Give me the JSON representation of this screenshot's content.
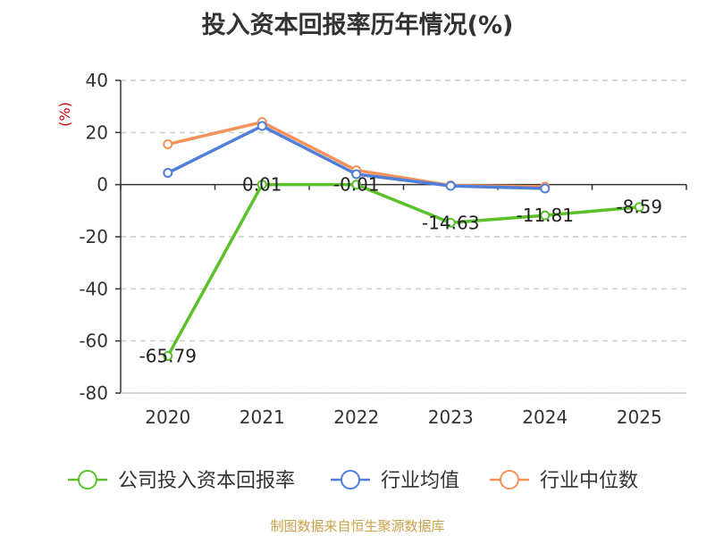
{
  "chart_data": {
    "type": "line",
    "title": "投入资本回报率历年情况(%)",
    "ylabel": "(%)",
    "xlabel": "",
    "categories": [
      "2020",
      "2021",
      "2022",
      "2023",
      "2024",
      "2025"
    ],
    "ylim": [
      -80,
      40
    ],
    "yticks": [
      40,
      20,
      0,
      -20,
      -40,
      -60,
      -80
    ],
    "grid": true,
    "legend_position": "bottom",
    "series": [
      {
        "name": "公司投入资本回报率",
        "color": "#5ac12a",
        "values": [
          -65.79,
          0.01,
          -0.01,
          -14.63,
          -11.81,
          -8.59
        ],
        "labels": [
          "-65.79",
          "0.01",
          "-0.01",
          "-14.63",
          "-11.81",
          "-8.59"
        ]
      },
      {
        "name": "行业均值",
        "color": "#4f7fda",
        "values": [
          4.5,
          22.5,
          4.0,
          -0.5,
          -1.5,
          null
        ],
        "labels": null
      },
      {
        "name": "行业中位数",
        "color": "#f4925a",
        "values": [
          15.5,
          24.0,
          5.5,
          -0.3,
          -0.8,
          null
        ],
        "labels": null
      }
    ],
    "source": "制图数据来自恒生聚源数据库"
  }
}
